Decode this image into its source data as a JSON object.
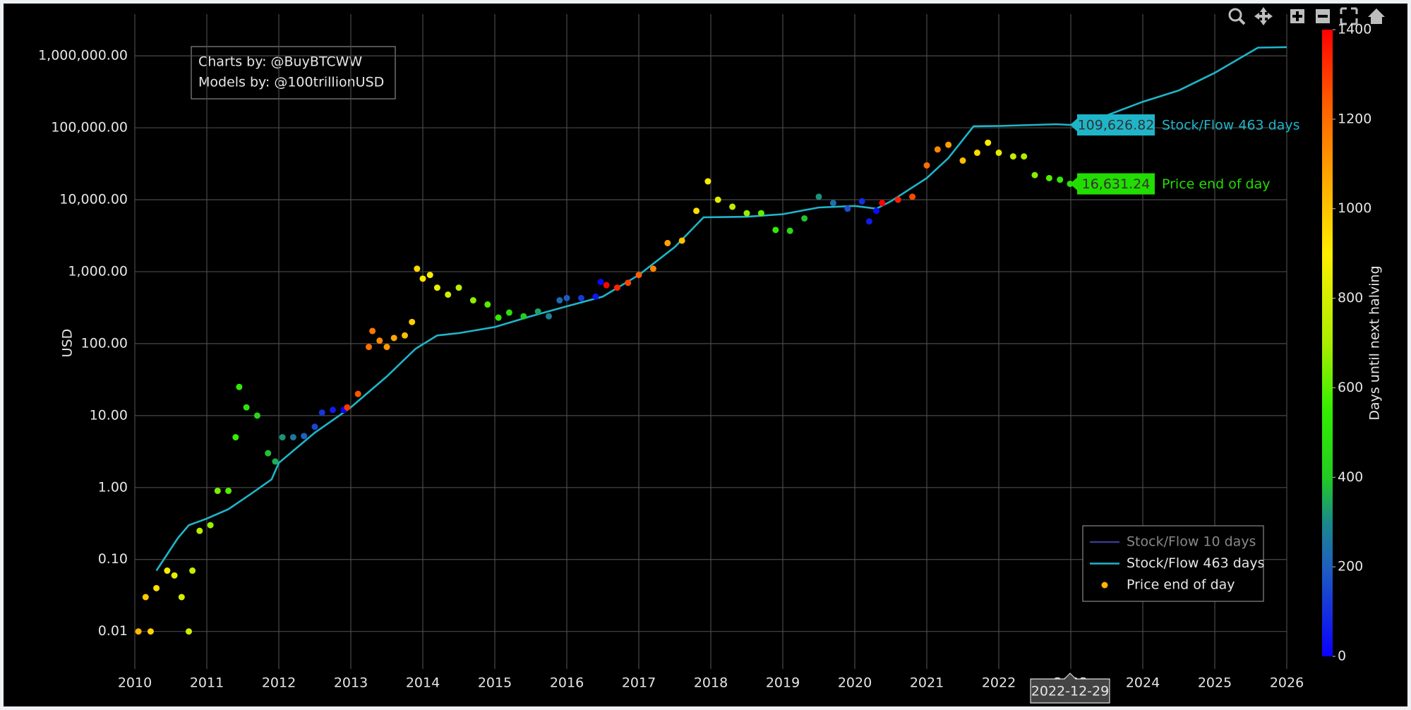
{
  "chart_data": {
    "type": "scatter",
    "y_label": "USD",
    "log_y": true,
    "grid": true,
    "xlim": [
      2010,
      2026
    ],
    "xticks": [
      2010,
      2011,
      2012,
      2013,
      2014,
      2015,
      2016,
      2017,
      2018,
      2019,
      2020,
      2021,
      2022,
      2023,
      2024,
      2025,
      2026
    ],
    "ylim": [
      0.003,
      3800000
    ],
    "yticks": [
      0.01,
      {
        "value": 0.1,
        "label": "0.10"
      },
      {
        "value": 1,
        "label": "1.00"
      },
      {
        "value": 10,
        "label": "10.00"
      },
      {
        "value": 100,
        "label": "100.00"
      },
      {
        "value": 1000,
        "label": "1,000.00"
      },
      {
        "value": 10000,
        "label": "10,000.00"
      },
      {
        "value": 100000,
        "label": "100,000.00"
      },
      {
        "value": 1000000,
        "label": "1,000,000.00"
      }
    ],
    "annotation": [
      "Charts by: @BuyBTCWW",
      "Models by: @100trillionUSD"
    ],
    "legend": "bottom-right",
    "series": [
      {
        "name": "Stock/Flow 10 days",
        "color": "#3a3a8c",
        "mode": "lines",
        "visible": "legendonly",
        "x": [],
        "values": []
      },
      {
        "name": "Stock/Flow 463 days",
        "color": "#1fb5c9",
        "mode": "lines",
        "x": [
          2010.3,
          2010.6,
          2010.75,
          2011.0,
          2011.3,
          2011.6,
          2011.9,
          2012.0,
          2012.5,
          2012.9,
          2013.0,
          2013.5,
          2013.9,
          2014.2,
          2014.5,
          2015.0,
          2015.5,
          2016.0,
          2016.5,
          2017.0,
          2017.5,
          2017.9,
          2018.5,
          2019.0,
          2019.5,
          2020.0,
          2020.3,
          2020.5,
          2021.0,
          2021.3,
          2021.65,
          2022.0,
          2022.8,
          2022.99,
          2023.3,
          2024.0,
          2024.5,
          2025.0,
          2025.6,
          2026.0
        ],
        "values": [
          0.07,
          0.2,
          0.3,
          0.37,
          0.5,
          0.8,
          1.3,
          2.2,
          5.8,
          11,
          13,
          35,
          85,
          130,
          140,
          170,
          240,
          330,
          450,
          900,
          2200,
          5700,
          5800,
          6300,
          7800,
          8200,
          7500,
          9500,
          20000,
          38000,
          105000,
          106000,
          112000,
          109626.82,
          125000,
          230000,
          330000,
          580000,
          1300000,
          1320000
        ]
      },
      {
        "name": "Price end of day",
        "color": "#ffb300",
        "mode": "markers",
        "x": [
          2010.05,
          2010.15,
          2010.22,
          2010.3,
          2010.45,
          2010.55,
          2010.65,
          2010.75,
          2010.8,
          2010.9,
          2011.05,
          2011.15,
          2011.3,
          2011.4,
          2011.45,
          2011.55,
          2011.7,
          2011.85,
          2011.95,
          2012.05,
          2012.2,
          2012.35,
          2012.5,
          2012.6,
          2012.75,
          2012.9,
          2012.95,
          2013.1,
          2013.25,
          2013.3,
          2013.4,
          2013.5,
          2013.6,
          2013.75,
          2013.85,
          2013.92,
          2014.0,
          2014.1,
          2014.2,
          2014.35,
          2014.5,
          2014.7,
          2014.9,
          2015.05,
          2015.2,
          2015.4,
          2015.6,
          2015.75,
          2015.9,
          2016.0,
          2016.2,
          2016.4,
          2016.47,
          2016.55,
          2016.7,
          2016.85,
          2017.0,
          2017.2,
          2017.4,
          2017.6,
          2017.8,
          2017.96,
          2018.1,
          2018.3,
          2018.5,
          2018.7,
          2018.9,
          2019.1,
          2019.3,
          2019.5,
          2019.7,
          2019.9,
          2020.1,
          2020.2,
          2020.3,
          2020.38,
          2020.6,
          2020.8,
          2021.0,
          2021.15,
          2021.3,
          2021.5,
          2021.7,
          2021.85,
          2022.0,
          2022.2,
          2022.35,
          2022.5,
          2022.7,
          2022.85,
          2022.99
        ],
        "values": [
          0.01,
          0.03,
          0.01,
          0.04,
          0.07,
          0.06,
          0.03,
          0.01,
          0.07,
          0.25,
          0.3,
          0.9,
          0.9,
          5,
          25,
          13,
          10,
          3,
          2.3,
          5,
          5,
          5.2,
          7,
          11,
          12,
          12,
          13,
          20,
          90,
          150,
          110,
          90,
          120,
          130,
          200,
          1100,
          800,
          900,
          600,
          480,
          600,
          400,
          350,
          230,
          270,
          240,
          280,
          240,
          400,
          430,
          430,
          450,
          720,
          650,
          600,
          700,
          900,
          1100,
          2500,
          2700,
          7000,
          18000,
          10000,
          8000,
          6500,
          6500,
          3800,
          3700,
          5500,
          11000,
          9000,
          7500,
          9500,
          5000,
          7000,
          9000,
          10000,
          11000,
          30000,
          50000,
          58000,
          35000,
          45000,
          62000,
          45000,
          40000,
          40000,
          22000,
          20000,
          19000,
          16631.24
        ],
        "color_values": [
          1026,
          990,
          964,
          935,
          880,
          844,
          807,
          785,
          767,
          730,
          679,
          643,
          588,
          552,
          533,
          497,
          442,
          387,
          351,
          314,
          259,
          205,
          150,
          113,
          58,
          4,
          1304,
          1249,
          1194,
          1176,
          1139,
          1103,
          1066,
          1012,
          975,
          950,
          920,
          884,
          848,
          793,
          738,
          665,
          592,
          537,
          482,
          409,
          336,
          281,
          226,
          190,
          117,
          44,
          18,
          1392,
          1337,
          1282,
          1227,
          1154,
          1081,
          1008,
          935,
          877,
          826,
          753,
          679,
          606,
          533,
          461,
          387,
          314,
          241,
          168,
          95,
          58,
          22,
          1425,
          1344,
          1271,
          1198,
          1143,
          1088,
          1015,
          942,
          888,
          833,
          760,
          712,
          657,
          584,
          529,
          478
        ]
      }
    ],
    "colorbar": {
      "title": "Days until next halving",
      "lim": [
        0,
        1400
      ],
      "ticks": [
        0,
        200,
        400,
        600,
        800,
        1000,
        1200,
        1400
      ],
      "colorscale": [
        [
          0,
          "#0a00ff"
        ],
        [
          200,
          "#1f5fbf"
        ],
        [
          300,
          "#1a8a8a"
        ],
        [
          400,
          "#22cc22"
        ],
        [
          550,
          "#33ee00"
        ],
        [
          700,
          "#aaee00"
        ],
        [
          900,
          "#ffee00"
        ],
        [
          1100,
          "#ff9900"
        ],
        [
          1250,
          "#ff5500"
        ],
        [
          1400,
          "#ff0000"
        ]
      ]
    },
    "hover": {
      "x": 2022.99,
      "x_label": "2022-12-29",
      "values": [
        null,
        109626.82,
        16631.24
      ],
      "value_labels": [
        null,
        "109,626.82",
        "16,631.24"
      ],
      "colors": [
        null,
        "#1fb5c9",
        "#22dd00"
      ]
    }
  }
}
